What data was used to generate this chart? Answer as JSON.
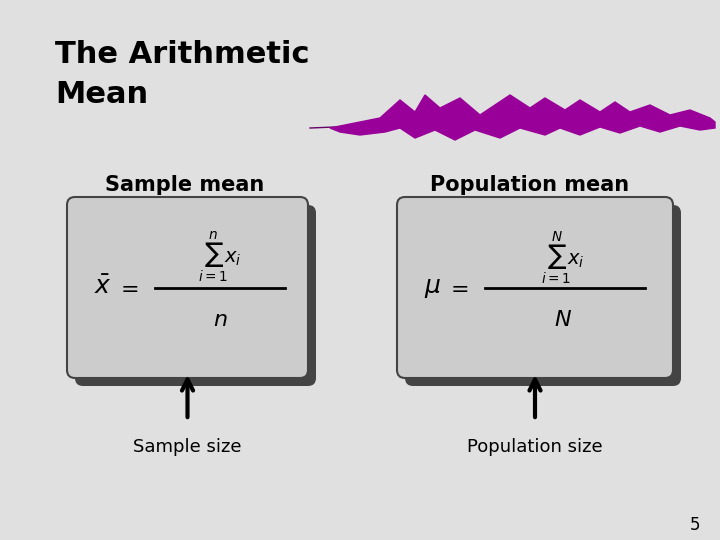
{
  "title_line1": "The Arithmetic",
  "title_line2": "Mean",
  "title_fontsize": 22,
  "title_fontweight": "bold",
  "bg_color": "#e0e0e0",
  "sample_mean_label": "Sample mean",
  "population_mean_label": "Population mean",
  "sample_size_label": "Sample size",
  "population_size_label": "Population size",
  "page_number": "5",
  "box_facecolor": "#cccccc",
  "box_edgecolor": "#444444",
  "box_shadow_color": "#444444",
  "purple_color": "#990099",
  "label_fontsize": 15,
  "sublabel_fontsize": 13
}
